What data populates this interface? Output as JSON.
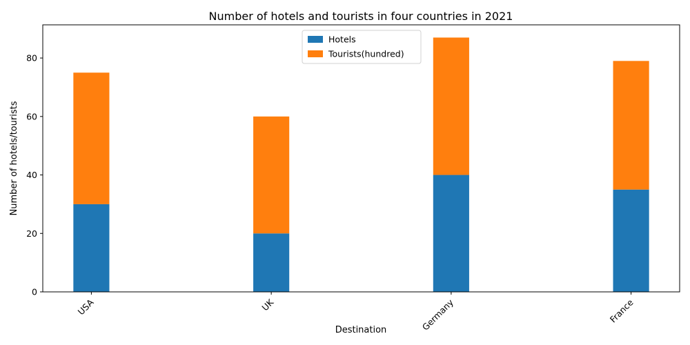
{
  "chart_data": {
    "type": "bar",
    "stacked": true,
    "title": "Number of hotels and tourists in four countries in 2021",
    "xlabel": "Destination",
    "ylabel": "Number of hotels/tourists",
    "categories": [
      "USA",
      "UK",
      "Germany",
      "France"
    ],
    "series": [
      {
        "name": "Hotels",
        "values": [
          30,
          20,
          40,
          35
        ],
        "color": "#1f77b4"
      },
      {
        "name": "Tourists(hundred)",
        "values": [
          45,
          40,
          47,
          44
        ],
        "color": "#ff7f0e"
      }
    ],
    "ylim": [
      0,
      91.35
    ],
    "yticks": [
      0,
      20,
      40,
      60,
      80
    ],
    "grid": false,
    "legend": "upper-center",
    "x_tick_rotation": 45
  }
}
